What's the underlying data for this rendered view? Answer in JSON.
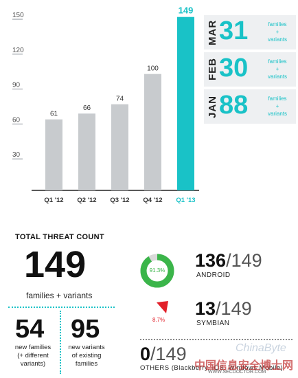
{
  "chart_data": {
    "type": "bar",
    "categories": [
      "Q1 '12",
      "Q2 '12",
      "Q3 '12",
      "Q4 '12",
      "Q1 '13"
    ],
    "values": [
      61,
      66,
      74,
      100,
      149
    ],
    "ylim": [
      0,
      150
    ],
    "yticks": [
      30,
      60,
      90,
      120,
      150
    ],
    "bar_colors": [
      "#c8cbce",
      "#c8cbce",
      "#c8cbce",
      "#c8cbce",
      "#19c2c7"
    ],
    "label_colors": [
      "#333333",
      "#333333",
      "#333333",
      "#333333",
      "#19c2c7"
    ],
    "grid": false
  },
  "monthly": [
    {
      "month": "MAR",
      "value": "31",
      "note": "families\n+\nvariants"
    },
    {
      "month": "FEB",
      "value": "30",
      "note": "families\n+\nvariants"
    },
    {
      "month": "JAN",
      "value": "88",
      "note": "families\n+\nvariants"
    }
  ],
  "summary": {
    "heading": "TOTAL THREAT COUNT",
    "total": "149",
    "total_caption": "families + variants",
    "new_families_value": "54",
    "new_families_caption": "new families\n(+ different\nvariants)",
    "new_variants_value": "95",
    "new_variants_caption": "new variants\nof existing\nfamilies"
  },
  "platforms": [
    {
      "name": "ANDROID",
      "count": "136",
      "total": "/149",
      "percent_label": "91.3%",
      "percent": 91.3,
      "color": "#3bb54a"
    },
    {
      "name": "SYMBIAN",
      "count": "13",
      "total": "/149",
      "percent_label": "8.7%",
      "percent": 8.7,
      "color": "#e2202a"
    },
    {
      "name": "OTHERS (Blackberry, iOS, Windows Mobile)",
      "count": "0",
      "total": "/149"
    }
  ],
  "watermark": {
    "brand": "ChinaByte",
    "cn": "中国信息安全博士网",
    "url": "WWW.SECDOCTOR.COM"
  }
}
